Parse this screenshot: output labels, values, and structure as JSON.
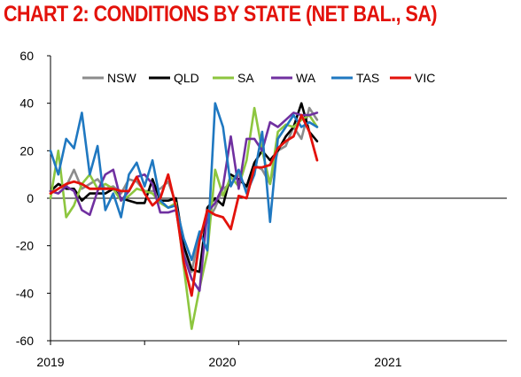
{
  "chart_data": {
    "type": "line",
    "title": "CHART 2: CONDITIONS BY STATE (NET BAL., SA)",
    "xlabel": "",
    "ylabel": "",
    "ylim": [
      -60,
      60
    ],
    "yticks": [
      -60,
      -40,
      -20,
      0,
      20,
      40,
      60
    ],
    "x_tick_labels": [
      "2019",
      "2020",
      "2021"
    ],
    "x_start": "2019-01",
    "grid": false,
    "legend_position": "top",
    "series": [
      {
        "name": "NSW",
        "color": "#8c8c8c",
        "values": [
          3,
          6,
          5,
          12,
          4,
          6,
          8,
          4,
          5,
          2,
          8,
          7,
          3,
          3,
          4,
          7,
          -2,
          -22,
          -31,
          -15,
          -10,
          -4,
          4,
          6,
          10,
          4,
          14,
          12,
          6,
          20,
          22,
          30,
          25,
          38,
          33
        ]
      },
      {
        "name": "QLD",
        "color": "#000000",
        "values": [
          3,
          6,
          4,
          4,
          -1,
          2,
          2,
          2,
          4,
          0,
          -1,
          -2,
          -2,
          8,
          -1,
          -1,
          0,
          -20,
          -30,
          -31,
          -4,
          0,
          -3,
          10,
          8,
          5,
          15,
          20,
          16,
          20,
          26,
          30,
          40,
          28,
          24
        ]
      },
      {
        "name": "SA",
        "color": "#8dc63f",
        "values": [
          0,
          20,
          -8,
          -3,
          6,
          10,
          4,
          6,
          4,
          -1,
          1,
          4,
          3,
          2,
          -2,
          -4,
          -2,
          -29,
          -55,
          -38,
          -23,
          12,
          1,
          9,
          5,
          16,
          38,
          20,
          6,
          28,
          31,
          30,
          33,
          35,
          30
        ]
      },
      {
        "name": "WA",
        "color": "#7030a0",
        "values": [
          3,
          2,
          5,
          3,
          -5,
          -7,
          3,
          10,
          12,
          -1,
          3,
          9,
          10,
          6,
          -6,
          -6,
          -5,
          -24,
          -34,
          -39,
          -6,
          -2,
          5,
          26,
          4,
          25,
          25,
          20,
          32,
          30,
          33,
          36,
          35,
          35,
          36
        ]
      },
      {
        "name": "TAS",
        "color": "#1f78c1",
        "values": [
          20,
          10,
          25,
          21,
          36,
          10,
          22,
          -5,
          2,
          -8,
          10,
          15,
          5,
          16,
          -1,
          -4,
          -3,
          -17,
          -26,
          -14,
          -22,
          40,
          30,
          5,
          12,
          2,
          10,
          28,
          -10,
          25,
          30,
          35,
          30,
          32,
          30
        ]
      },
      {
        "name": "VIC",
        "color": "#e3120b",
        "values": [
          2,
          4,
          6,
          7,
          6,
          4,
          4,
          4,
          4,
          3,
          3,
          9,
          2,
          -3,
          0,
          10,
          -4,
          -27,
          -41,
          -18,
          -5,
          -7,
          -8,
          -13,
          1,
          0,
          13,
          13,
          14,
          21,
          24,
          26,
          35,
          28,
          16
        ]
      }
    ]
  }
}
